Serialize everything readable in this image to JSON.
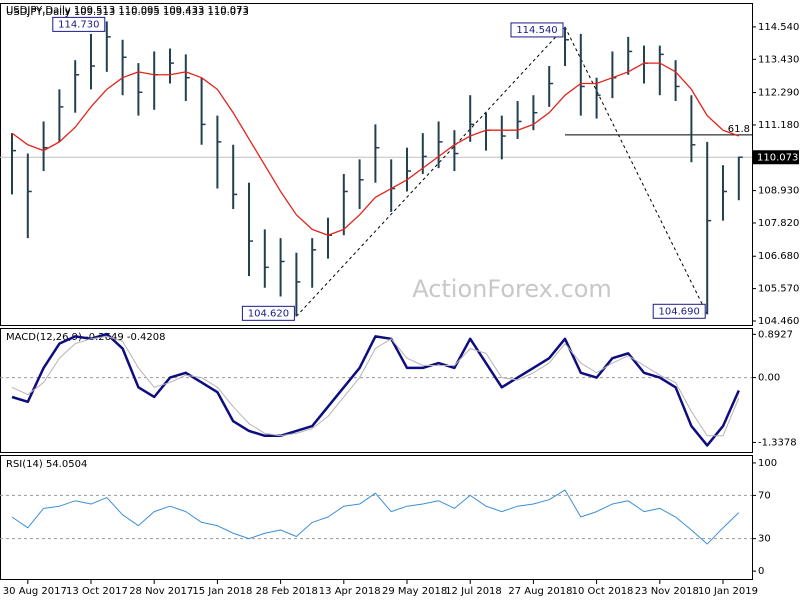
{
  "chart_data": [
    {
      "type": "hlc",
      "title": "USDJPY,Daily  109.513 110.095 109.433 110.073",
      "watermark": "ActionForex.com",
      "categories": [
        null,
        "30 Aug 2017",
        null,
        null,
        null,
        "13 Oct 2017",
        null,
        null,
        null,
        "28 Nov 2017",
        null,
        null,
        null,
        "15 Jan 2018",
        null,
        null,
        null,
        "28 Feb 2018",
        null,
        null,
        null,
        "13 Apr 2018",
        null,
        null,
        null,
        "29 May 2018",
        null,
        null,
        null,
        "12 Jul 2018",
        null,
        null,
        null,
        "27 Aug 2018",
        null,
        null,
        null,
        "10 Oct 2018",
        null,
        null,
        null,
        "23 Nov 2018",
        null,
        null,
        null,
        "10 Jan 2019",
        null
      ],
      "bars": {
        "color": "#23404f",
        "high": [
          110.9,
          110.2,
          111.3,
          112.4,
          113.4,
          114.3,
          114.73,
          114.1,
          113.3,
          113.7,
          113.8,
          113.6,
          112.8,
          111.5,
          110.5,
          109.2,
          107.6,
          107.3,
          106.8,
          107.3,
          108.0,
          109.5,
          110.0,
          111.2,
          110.0,
          110.4,
          110.9,
          111.3,
          111.0,
          112.2,
          111.6,
          111.5,
          112.0,
          112.2,
          113.2,
          114.54,
          114.3,
          112.8,
          113.7,
          114.2,
          113.9,
          113.9,
          113.4,
          112.2,
          110.6,
          109.8,
          110.095
        ],
        "low": [
          108.8,
          107.3,
          109.6,
          110.6,
          111.6,
          112.4,
          113.0,
          112.2,
          111.5,
          111.7,
          112.6,
          112.0,
          110.5,
          109.0,
          108.3,
          106.0,
          105.6,
          105.3,
          104.62,
          105.6,
          106.6,
          107.4,
          108.3,
          109.2,
          108.2,
          108.9,
          109.5,
          109.7,
          109.6,
          110.6,
          110.3,
          110.0,
          110.7,
          111.0,
          111.8,
          113.2,
          111.5,
          111.4,
          112.1,
          112.9,
          112.6,
          112.2,
          112.0,
          109.9,
          104.69,
          107.9,
          108.6
        ],
        "close": [
          110.3,
          108.9,
          110.4,
          111.8,
          112.9,
          113.2,
          114.2,
          113.5,
          112.3,
          112.9,
          113.3,
          112.8,
          111.2,
          110.6,
          108.8,
          107.2,
          106.3,
          106.5,
          105.8,
          106.9,
          107.4,
          108.9,
          109.3,
          110.4,
          109.0,
          109.6,
          110.1,
          110.6,
          110.2,
          111.2,
          111.0,
          110.8,
          111.3,
          111.6,
          112.6,
          114.1,
          112.5,
          112.2,
          112.8,
          113.7,
          113.3,
          113.6,
          112.5,
          110.5,
          107.9,
          108.9,
          110.073
        ]
      },
      "series": [
        {
          "color": "#e3231c",
          "values": [
            110.9,
            110.5,
            110.3,
            110.6,
            111.1,
            111.8,
            112.4,
            112.8,
            113.0,
            112.9,
            112.9,
            113.0,
            112.8,
            112.4,
            111.6,
            110.7,
            109.8,
            108.9,
            108.1,
            107.6,
            107.4,
            107.6,
            108.1,
            108.7,
            109.0,
            109.3,
            109.7,
            110.1,
            110.5,
            110.8,
            111.0,
            111.0,
            111.0,
            111.2,
            111.6,
            112.2,
            112.6,
            112.6,
            112.8,
            113.0,
            113.3,
            113.3,
            113.0,
            112.4,
            111.5,
            111.0,
            110.8
          ]
        }
      ],
      "ylim": [
        104.323,
        115.326
      ],
      "yticks": [
        {
          "value": 104.46,
          "label": "104.460"
        },
        {
          "value": 105.57,
          "label": "105.570"
        },
        {
          "value": 106.68,
          "label": "106.680"
        },
        {
          "value": 107.82,
          "label": "107.820"
        },
        {
          "value": 108.93,
          "label": "108.930"
        },
        {
          "value": 111.18,
          "label": "111.180"
        },
        {
          "value": 112.29,
          "label": "112.290"
        },
        {
          "value": 113.43,
          "label": "113.430"
        },
        {
          "value": 114.54,
          "label": "114.540"
        }
      ],
      "annotations": [
        {
          "label": "114.730",
          "value": 114.73,
          "index": 6
        },
        {
          "label": "104.620",
          "value": 104.62,
          "index": 18
        },
        {
          "label": "114.540",
          "value": 114.54,
          "index": 35
        },
        {
          "label": "104.690",
          "value": 104.69,
          "index": 44
        }
      ],
      "fib": {
        "label": "61.8",
        "value": 110.84,
        "index": 35
      },
      "last": {
        "label": "110.073",
        "value": 110.073
      }
    },
    {
      "type": "line",
      "title": "MACD(12,26,9) -0.2649 -0.4208",
      "series": [
        {
          "color": "#0d0d80",
          "values": [
            -0.4,
            -0.5,
            0.2,
            0.7,
            0.85,
            0.8,
            0.9,
            0.6,
            -0.2,
            -0.4,
            0.0,
            0.1,
            -0.1,
            -0.3,
            -0.9,
            -1.1,
            -1.2,
            -1.2,
            -1.1,
            -1.0,
            -0.6,
            -0.2,
            0.2,
            0.85,
            0.8,
            0.2,
            0.2,
            0.3,
            0.2,
            0.8,
            0.3,
            -0.2,
            0.0,
            0.2,
            0.4,
            0.8,
            0.1,
            0.0,
            0.4,
            0.5,
            0.1,
            0.0,
            -0.2,
            -1.0,
            -1.4,
            -1.0,
            -0.2649
          ]
        },
        {
          "color": "#b4b4b4",
          "values": [
            -0.2,
            -0.35,
            -0.1,
            0.4,
            0.7,
            0.8,
            0.85,
            0.75,
            0.2,
            -0.2,
            -0.1,
            0.05,
            0.0,
            -0.2,
            -0.6,
            -0.95,
            -1.15,
            -1.2,
            -1.15,
            -1.05,
            -0.8,
            -0.4,
            0.0,
            0.6,
            0.8,
            0.4,
            0.25,
            0.25,
            0.25,
            0.6,
            0.5,
            0.0,
            -0.05,
            0.1,
            0.3,
            0.7,
            0.3,
            0.1,
            0.3,
            0.45,
            0.25,
            0.05,
            -0.1,
            -0.7,
            -1.2,
            -1.2,
            -0.4208
          ]
        }
      ],
      "ylim": [
        -1.5347,
        1.0027
      ],
      "yticks": [
        0.8927,
        {
          "value": 0,
          "label": "0.00"
        },
        -1.3378
      ],
      "levels": [
        0
      ]
    },
    {
      "type": "line",
      "title": "RSI(14) 54.0504",
      "series": [
        {
          "color": "#3d8fd8",
          "values": [
            50,
            40,
            58,
            60,
            65,
            62,
            68,
            52,
            42,
            55,
            60,
            55,
            45,
            42,
            35,
            30,
            35,
            38,
            32,
            45,
            50,
            60,
            62,
            72,
            55,
            60,
            62,
            65,
            58,
            70,
            60,
            55,
            60,
            62,
            66,
            75,
            50,
            55,
            62,
            65,
            55,
            58,
            50,
            38,
            25,
            40,
            54.0504
          ]
        }
      ],
      "ylim": [
        -7.3,
        106.4
      ],
      "yticks": [
        100,
        70,
        30,
        0
      ],
      "levels": [
        70,
        30
      ]
    }
  ]
}
